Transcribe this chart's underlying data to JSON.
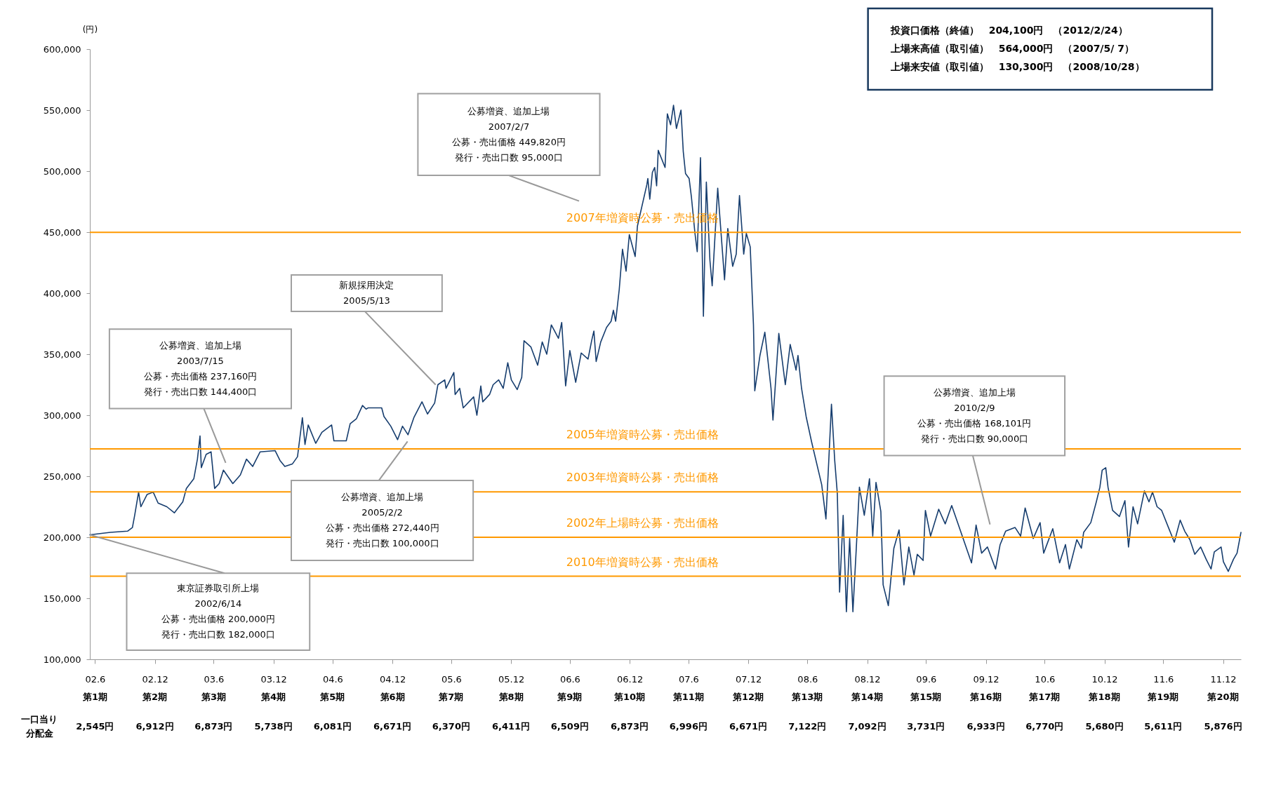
{
  "chart_data": {
    "type": "line",
    "ylabel": "(円)",
    "color": "#163d6e",
    "xlim": [
      "2002-06-14",
      "2012-02-24"
    ],
    "ylim": [
      100000,
      600000
    ],
    "yticks": [
      {
        "value": 100000,
        "label": "100,000"
      },
      {
        "value": 150000,
        "label": "150,000"
      },
      {
        "value": 200000,
        "label": "200,000"
      },
      {
        "value": 250000,
        "label": "250,000"
      },
      {
        "value": 300000,
        "label": "300,000"
      },
      {
        "value": 350000,
        "label": "350,000"
      },
      {
        "value": 400000,
        "label": "400,000"
      },
      {
        "value": 450000,
        "label": "450,000"
      },
      {
        "value": 500000,
        "label": "500,000"
      },
      {
        "value": 550000,
        "label": "550,000"
      },
      {
        "value": 600000,
        "label": "600,000"
      }
    ],
    "xticks": [
      {
        "value": "2002-06-30",
        "label": "02.6"
      },
      {
        "value": "2002-12-31",
        "label": "02.12"
      },
      {
        "value": "2003-06-30",
        "label": "03.6"
      },
      {
        "value": "2003-12-31",
        "label": "03.12"
      },
      {
        "value": "2004-06-30",
        "label": "04.6"
      },
      {
        "value": "2004-12-31",
        "label": "04.12"
      },
      {
        "value": "2005-06-30",
        "label": "05.6"
      },
      {
        "value": "2005-12-31",
        "label": "05.12"
      },
      {
        "value": "2006-06-30",
        "label": "06.6"
      },
      {
        "value": "2006-12-31",
        "label": "06.12"
      },
      {
        "value": "2007-06-30",
        "label": "07.6"
      },
      {
        "value": "2007-12-31",
        "label": "07.12"
      },
      {
        "value": "2008-06-30",
        "label": "08.6"
      },
      {
        "value": "2008-12-31",
        "label": "08.12"
      },
      {
        "value": "2009-06-30",
        "label": "09.6"
      },
      {
        "value": "2009-12-31",
        "label": "09.12"
      },
      {
        "value": "2010-06-30",
        "label": "10.6"
      },
      {
        "value": "2010-12-31",
        "label": "10.12"
      },
      {
        "value": "2011-06-30",
        "label": "11.6"
      },
      {
        "value": "2011-12-31",
        "label": "11.12"
      }
    ],
    "x": [
      "2002-06-14",
      "2002-08-16",
      "2002-10-08",
      "2002-10-23",
      "2002-10-30",
      "2002-11-11",
      "2002-11-18",
      "2002-12-07",
      "2002-12-26",
      "2003-01-10",
      "2003-02-06",
      "2003-03-01",
      "2003-03-27",
      "2003-04-07",
      "2003-04-30",
      "2003-05-11",
      "2003-05-19",
      "2003-05-23",
      "2003-06-07",
      "2003-06-22",
      "2003-07-03",
      "2003-07-17",
      "2003-07-30",
      "2003-08-28",
      "2003-09-20",
      "2003-10-09",
      "2003-10-28",
      "2003-11-20",
      "2004-01-05",
      "2004-01-20",
      "2004-02-04",
      "2004-02-27",
      "2004-03-14",
      "2004-03-29",
      "2004-04-06",
      "2004-04-16",
      "2004-05-09",
      "2004-05-28",
      "2004-06-27",
      "2004-07-04",
      "2004-08-11",
      "2004-08-23",
      "2004-09-11",
      "2004-09-30",
      "2004-10-11",
      "2004-10-17",
      "2004-11-28",
      "2004-12-05",
      "2004-12-26",
      "2005-01-16",
      "2005-01-31",
      "2005-02-17",
      "2005-03-07",
      "2005-04-01",
      "2005-04-18",
      "2005-05-10",
      "2005-05-20",
      "2005-06-10",
      "2005-06-14",
      "2005-07-08",
      "2005-07-12",
      "2005-07-26",
      "2005-08-06",
      "2005-09-07",
      "2005-09-17",
      "2005-09-29",
      "2005-10-05",
      "2005-10-26",
      "2005-11-06",
      "2005-11-23",
      "2005-12-07",
      "2005-12-21",
      "2006-01-01",
      "2006-01-19",
      "2006-02-02",
      "2006-02-09",
      "2006-03-02",
      "2006-03-23",
      "2006-04-06",
      "2006-04-20",
      "2006-05-04",
      "2006-05-26",
      "2006-06-05",
      "2006-06-17",
      "2006-06-30",
      "2006-07-18",
      "2006-08-04",
      "2006-08-25",
      "2006-09-05",
      "2006-09-12",
      "2006-09-19",
      "2006-10-03",
      "2006-10-21",
      "2006-11-04",
      "2006-11-11",
      "2006-11-18",
      "2006-11-29",
      "2006-12-09",
      "2006-12-20",
      "2006-12-30",
      "2007-01-17",
      "2007-01-24",
      "2007-02-22",
      "2007-02-25",
      "2007-03-03",
      "2007-03-11",
      "2007-03-18",
      "2007-03-24",
      "2007-03-29",
      "2007-04-19",
      "2007-04-26",
      "2007-05-06",
      "2007-05-15",
      "2007-05-24",
      "2007-06-07",
      "2007-06-14",
      "2007-06-21",
      "2007-07-02",
      "2007-07-09",
      "2007-07-20",
      "2007-07-27",
      "2007-08-06",
      "2007-08-15",
      "2007-08-24",
      "2007-09-04",
      "2007-09-11",
      "2007-09-18",
      "2007-09-28",
      "2007-10-19",
      "2007-10-29",
      "2007-11-13",
      "2007-11-24",
      "2007-12-04",
      "2007-12-17",
      "2007-12-25",
      "2008-01-06",
      "2008-01-16",
      "2008-01-20",
      "2008-02-05",
      "2008-02-20",
      "2008-03-10",
      "2008-03-16",
      "2008-04-03",
      "2008-04-23",
      "2008-05-08",
      "2008-05-26",
      "2008-06-01",
      "2008-06-12",
      "2008-06-26",
      "2008-07-13",
      "2008-08-13",
      "2008-08-26",
      "2008-09-02",
      "2008-09-12",
      "2008-09-22",
      "2008-09-30",
      "2008-10-07",
      "2008-10-18",
      "2008-10-28",
      "2008-11-07",
      "2008-11-17",
      "2008-11-27",
      "2008-12-07",
      "2008-12-22",
      "2009-01-07",
      "2009-01-17",
      "2009-01-27",
      "2009-02-11",
      "2009-02-18",
      "2009-03-06",
      "2009-03-23",
      "2009-04-08",
      "2009-04-23",
      "2009-05-08",
      "2009-05-24",
      "2009-06-03",
      "2009-06-21",
      "2009-06-28",
      "2009-07-14",
      "2009-08-08",
      "2009-08-28",
      "2009-09-17",
      "2009-10-13",
      "2009-11-17",
      "2009-12-01",
      "2009-12-18",
      "2010-01-05",
      "2010-01-30",
      "2010-02-13",
      "2010-03-02",
      "2010-03-31",
      "2010-04-17",
      "2010-05-01",
      "2010-05-26",
      "2010-06-16",
      "2010-06-27",
      "2010-07-25",
      "2010-08-15",
      "2010-09-02",
      "2010-09-14",
      "2010-10-07",
      "2010-10-21",
      "2010-10-28",
      "2010-11-19",
      "2010-12-06",
      "2010-12-17",
      "2010-12-24",
      "2011-01-04",
      "2011-01-11",
      "2011-01-25",
      "2011-02-15",
      "2011-03-04",
      "2011-03-15",
      "2011-03-29",
      "2011-04-12",
      "2011-05-03",
      "2011-05-17",
      "2011-05-28",
      "2011-06-11",
      "2011-06-25",
      "2011-07-16",
      "2011-08-03",
      "2011-08-21",
      "2011-09-04",
      "2011-09-20",
      "2011-10-05",
      "2011-10-23",
      "2011-11-09",
      "2011-11-24",
      "2011-12-04",
      "2011-12-25",
      "2012-01-01",
      "2012-01-16",
      "2012-02-01",
      "2012-02-12",
      "2012-02-24"
    ],
    "values": [
      202000,
      204000,
      205000,
      208000,
      218000,
      237000,
      225000,
      235000,
      237000,
      228000,
      225000,
      220000,
      229000,
      240000,
      248000,
      264000,
      283000,
      257000,
      268000,
      270000,
      240000,
      244000,
      255000,
      244000,
      251000,
      264000,
      258000,
      270000,
      271000,
      263000,
      258000,
      260000,
      266000,
      298000,
      276000,
      292000,
      277000,
      286000,
      292000,
      279000,
      279000,
      293000,
      297000,
      308000,
      305000,
      306000,
      306000,
      299000,
      291000,
      280000,
      291000,
      284000,
      298000,
      311000,
      301000,
      310000,
      325000,
      329000,
      322000,
      335000,
      317000,
      322000,
      306000,
      315000,
      300000,
      324000,
      311000,
      317000,
      325000,
      329000,
      322000,
      343000,
      329000,
      321000,
      331000,
      361000,
      356000,
      341000,
      360000,
      350000,
      374000,
      363000,
      376000,
      324000,
      353000,
      327000,
      351000,
      346000,
      361000,
      369000,
      344000,
      360000,
      372000,
      377000,
      386000,
      377000,
      403000,
      436000,
      418000,
      448000,
      430000,
      455000,
      489000,
      494000,
      477000,
      499000,
      503000,
      488000,
      517000,
      503000,
      547000,
      538000,
      554000,
      535000,
      550000,
      516000,
      498000,
      494000,
      479000,
      449000,
      434000,
      511000,
      381000,
      491000,
      427000,
      406000,
      439000,
      486000,
      411000,
      453000,
      422000,
      432000,
      480000,
      432000,
      449000,
      438000,
      374000,
      320000,
      349000,
      368000,
      322000,
      296000,
      367000,
      325000,
      358000,
      337000,
      349000,
      322000,
      299000,
      278000,
      243000,
      215000,
      253000,
      309000,
      263000,
      236000,
      155000,
      218000,
      139000,
      199000,
      139000,
      189000,
      241000,
      218000,
      248000,
      201000,
      245000,
      221000,
      161000,
      144000,
      191000,
      206000,
      161000,
      192000,
      169000,
      186000,
      181000,
      222000,
      201000,
      223000,
      211000,
      226000,
      206000,
      179000,
      210000,
      187000,
      192000,
      174000,
      194000,
      205000,
      208000,
      201000,
      224000,
      199000,
      212000,
      187000,
      207000,
      179000,
      194000,
      174000,
      198000,
      191000,
      204000,
      212000,
      229000,
      241000,
      255000,
      257000,
      241000,
      222000,
      217000,
      230000,
      192000,
      225000,
      211000,
      238000,
      229000,
      237000,
      225000,
      222000,
      208000,
      196000,
      214000,
      205000,
      198000,
      186000,
      192000,
      182000,
      174000,
      188000,
      192000,
      180000,
      172000,
      182000,
      187000,
      204000
    ],
    "ref_lines": [
      {
        "axis": "y",
        "value": 449820,
        "label": "2007年増資時公募・売出価格",
        "color": "#ff9900"
      },
      {
        "axis": "y",
        "value": 272440,
        "label": "2005年増資時公募・売出価格",
        "color": "#ff9900"
      },
      {
        "axis": "y",
        "value": 237160,
        "label": "2003年増資時公募・売出価格",
        "color": "#ff9900"
      },
      {
        "axis": "y",
        "value": 200000,
        "label": "2002年上場時公募・売出価格",
        "color": "#ff9900"
      },
      {
        "axis": "y",
        "value": 168101,
        "label": "2010年増資時公募・売出価格",
        "color": "#ff9900"
      }
    ],
    "annotations": [
      "投資口価格（終値）　204,100円　（2012/2/24）",
      "上場来高値（取引値）　564,000円　（2007/5/ 7）",
      "上場来安値（取引値）　130,300円　（2008/10/28）",
      "一口当り",
      "分配金",
      {
        "text": "東京証券取引所上場",
        "x": "2002-06-14",
        "y": 202000
      },
      "2002/6/14",
      "公募・売出価格 200,000円",
      "発行・売出口数 182,000口",
      "公募増資、追加上場",
      "2003/7/15",
      "公募・売出価格 237,160円",
      "発行・売出口数 144,400口",
      "新規採用決定",
      {
        "text": "2005/5/13",
        "x": "2005-05-13",
        "y": 325000
      },
      "公募増資、追加上場",
      "2005/2/2",
      "公募・売出価格 272,440円",
      "発行・売出口数 100,000口",
      "公募増資、追加上場",
      "2007/2/7",
      "公募・売出価格 449,820円",
      "発行・売出口数 95,000口",
      "公募増資、追加上場",
      "2010/2/9",
      "公募・売出価格 168,101円",
      "発行・売出口数 90,000口",
      "第1期",
      "第2期",
      "第3期",
      "第4期",
      "第5期",
      "第6期",
      "第7期",
      "第8期",
      "第9期",
      "第10期",
      "第11期",
      "第12期",
      "第13期",
      "第14期",
      "第15期",
      "第16期",
      "第17期",
      "第18期",
      "第19期",
      "第20期",
      "2,545円",
      "6,912円",
      "6,873円",
      "5,738円",
      "6,081円",
      "6,671円",
      "6,370円",
      "6,411円",
      "6,509円",
      "6,873円",
      "6,996円",
      "6,671円",
      "7,122円",
      "7,092円",
      "3,731円",
      "6,933円",
      "6,770円",
      "5,680円",
      "5,611円",
      "5,876円"
    ]
  }
}
